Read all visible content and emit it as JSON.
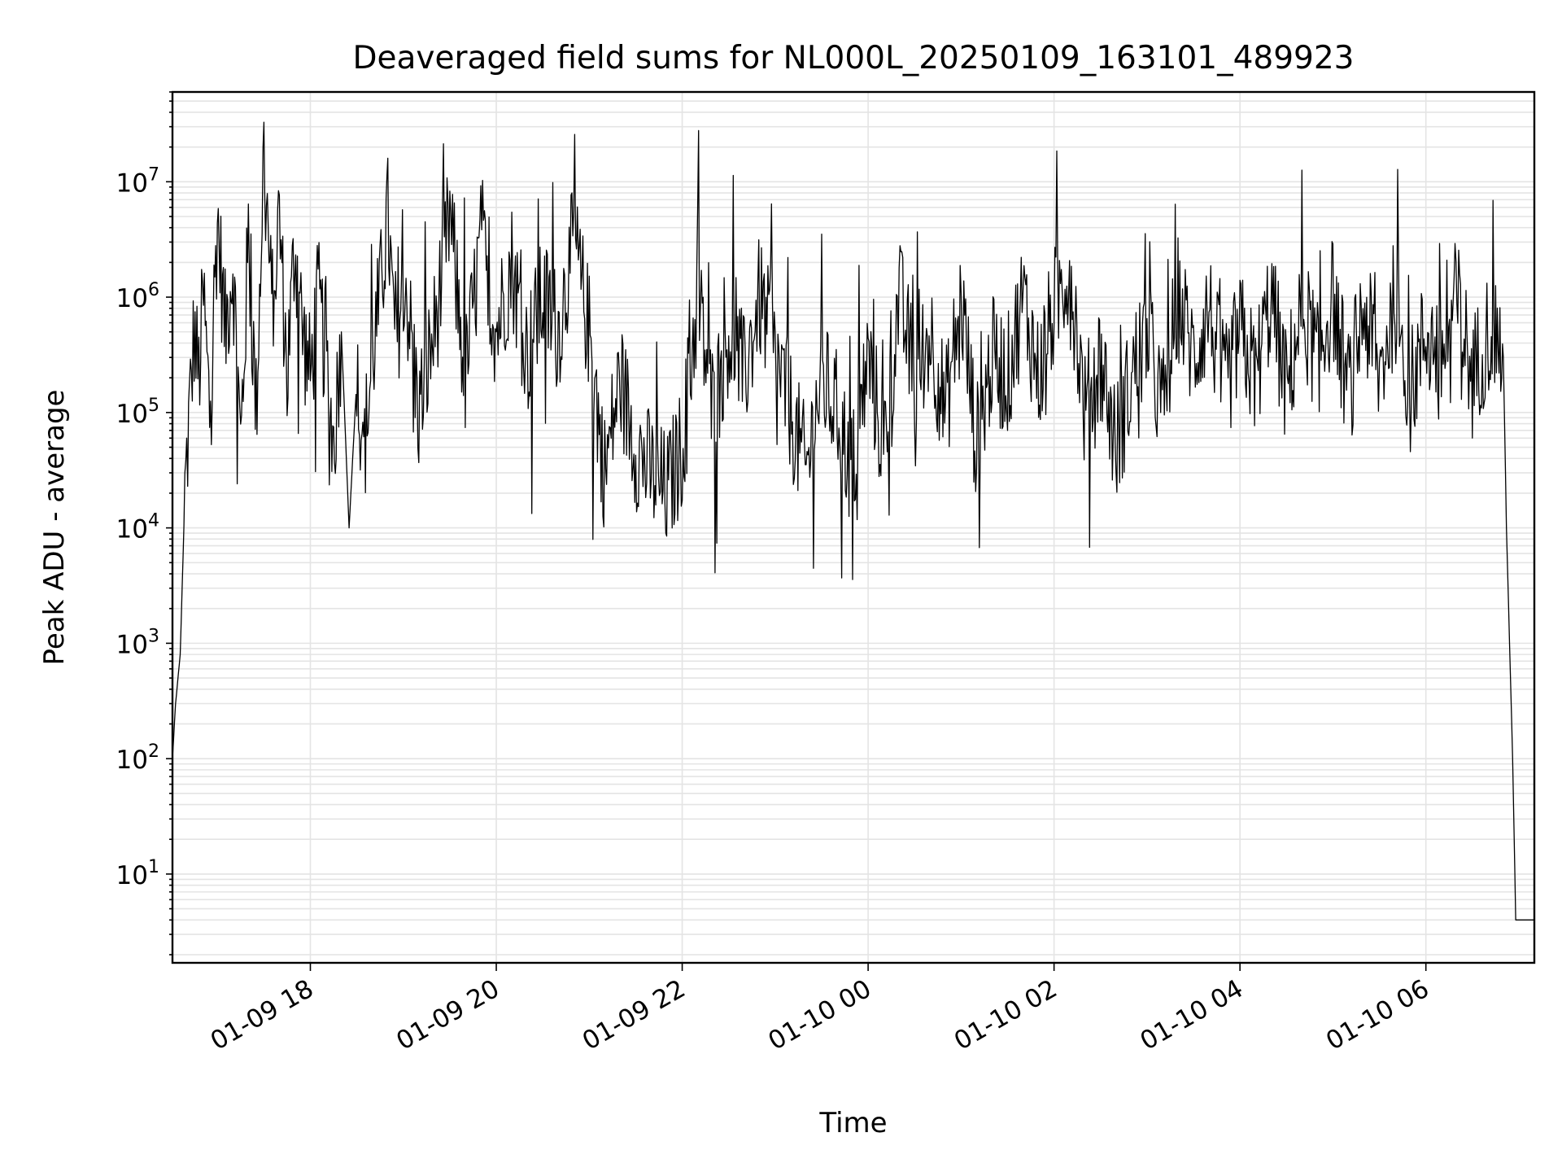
{
  "chart_data": {
    "type": "line",
    "title": "Deaveraged field sums for NL000L_20250109_163101_489923",
    "xlabel": "Time",
    "ylabel": "Peak ADU - average",
    "yscale": "log",
    "grid": true,
    "line_color": "#000000",
    "grid_color": "#e4e4e4",
    "xlim": [
      "2025-01-09 16:31",
      "2025-01-10 07:10"
    ],
    "ylim": [
      1.7,
      60000000
    ],
    "x_ticks": [
      {
        "value": "2025-01-09 18:00",
        "label": "01-09 18"
      },
      {
        "value": "2025-01-09 20:00",
        "label": "01-09 20"
      },
      {
        "value": "2025-01-09 22:00",
        "label": "01-09 22"
      },
      {
        "value": "2025-01-10 00:00",
        "label": "01-10 00"
      },
      {
        "value": "2025-01-10 02:00",
        "label": "01-10 02"
      },
      {
        "value": "2025-01-10 04:00",
        "label": "01-10 04"
      },
      {
        "value": "2025-01-10 06:00",
        "label": "01-10 06"
      }
    ],
    "y_ticks": [
      {
        "value": 10,
        "base": "10",
        "exp": "1"
      },
      {
        "value": 100,
        "base": "10",
        "exp": "2"
      },
      {
        "value": 1000,
        "base": "10",
        "exp": "3"
      },
      {
        "value": 10000,
        "base": "10",
        "exp": "4"
      },
      {
        "value": 100000,
        "base": "10",
        "exp": "5"
      },
      {
        "value": 1000000,
        "base": "10",
        "exp": "6"
      },
      {
        "value": 10000000,
        "base": "10",
        "exp": "7"
      }
    ],
    "series": [
      {
        "x": [
          "2025-01-09 16:31",
          "2025-01-09 16:33",
          "2025-01-09 16:36",
          "2025-01-09 16:39",
          "2025-01-09 16:42",
          "2025-01-09 16:45",
          "2025-01-09 16:48",
          "2025-01-09 16:51",
          "2025-01-09 16:55",
          "2025-01-09 17:00",
          "2025-01-09 17:05",
          "2025-01-09 17:10",
          "2025-01-09 17:15",
          "2025-01-09 17:20",
          "2025-01-09 17:25",
          "2025-01-09 17:30",
          "2025-01-09 17:35",
          "2025-01-09 17:40",
          "2025-01-09 17:45",
          "2025-01-09 17:50",
          "2025-01-09 17:55",
          "2025-01-09 18:00",
          "2025-01-09 18:05",
          "2025-01-09 18:10",
          "2025-01-09 18:15",
          "2025-01-09 18:20",
          "2025-01-09 18:25",
          "2025-01-09 18:30",
          "2025-01-09 18:35",
          "2025-01-09 18:40",
          "2025-01-09 18:45",
          "2025-01-09 18:50",
          "2025-01-09 18:55",
          "2025-01-09 19:00",
          "2025-01-09 19:10",
          "2025-01-09 19:20",
          "2025-01-09 19:30",
          "2025-01-09 19:40",
          "2025-01-09 19:50",
          "2025-01-09 20:00",
          "2025-01-09 20:10",
          "2025-01-09 20:20",
          "2025-01-09 20:30",
          "2025-01-09 20:40",
          "2025-01-09 20:50",
          "2025-01-09 21:00",
          "2025-01-09 21:10",
          "2025-01-09 21:20",
          "2025-01-09 21:30",
          "2025-01-09 21:40",
          "2025-01-09 21:50",
          "2025-01-09 22:00",
          "2025-01-09 22:10",
          "2025-01-09 22:20",
          "2025-01-09 22:30",
          "2025-01-09 22:40",
          "2025-01-09 22:50",
          "2025-01-09 23:00",
          "2025-01-09 23:10",
          "2025-01-09 23:20",
          "2025-01-09 23:30",
          "2025-01-09 23:40",
          "2025-01-09 23:50",
          "2025-01-10 00:00",
          "2025-01-10 00:10",
          "2025-01-10 00:20",
          "2025-01-10 00:30",
          "2025-01-10 00:40",
          "2025-01-10 00:50",
          "2025-01-10 01:00",
          "2025-01-10 01:10",
          "2025-01-10 01:20",
          "2025-01-10 01:30",
          "2025-01-10 01:40",
          "2025-01-10 01:50",
          "2025-01-10 02:00",
          "2025-01-10 02:10",
          "2025-01-10 02:20",
          "2025-01-10 02:30",
          "2025-01-10 02:40",
          "2025-01-10 02:50",
          "2025-01-10 03:00",
          "2025-01-10 03:10",
          "2025-01-10 03:20",
          "2025-01-10 03:30",
          "2025-01-10 03:40",
          "2025-01-10 03:50",
          "2025-01-10 04:00",
          "2025-01-10 04:10",
          "2025-01-10 04:20",
          "2025-01-10 04:30",
          "2025-01-10 04:40",
          "2025-01-10 04:50",
          "2025-01-10 05:00",
          "2025-01-10 05:10",
          "2025-01-10 05:20",
          "2025-01-10 05:30",
          "2025-01-10 05:40",
          "2025-01-10 05:50",
          "2025-01-10 06:00",
          "2025-01-10 06:10",
          "2025-01-10 06:20",
          "2025-01-10 06:30",
          "2025-01-10 06:40",
          "2025-01-10 06:45",
          "2025-01-10 06:50",
          "2025-01-10 06:52",
          "2025-01-10 06:54",
          "2025-01-10 06:56",
          "2025-01-10 06:58",
          "2025-01-10 07:00",
          "2025-01-10 07:05",
          "2025-01-10 07:10"
        ],
        "y": [
          100,
          300,
          800,
          20000,
          100000,
          500000,
          200000,
          1000000,
          100000,
          5000000,
          500000,
          2000000,
          50000,
          3000000,
          100000,
          20000000,
          800000,
          5000000,
          200000,
          3000000,
          500000,
          200000,
          1000000,
          300000,
          50000,
          500000,
          10000,
          200000,
          50000,
          300000,
          1000000,
          5000000,
          300000,
          2000000,
          100000,
          500000,
          5000000,
          200000,
          3000000,
          500000,
          2000000,
          300000,
          1000000,
          500000,
          3000000,
          500000,
          30000,
          200000,
          50000,
          30000,
          20000,
          50000,
          1000000,
          100000,
          500000,
          200000,
          1000000,
          300000,
          100000,
          30000,
          200000,
          100000,
          30000,
          300000,
          50000,
          1000000,
          200000,
          500000,
          100000,
          1000000,
          50000,
          300000,
          200000,
          1000000,
          200000,
          800000,
          2000000,
          100000,
          300000,
          50000,
          200000,
          500000,
          100000,
          1000000,
          300000,
          800000,
          150000,
          500000,
          200000,
          1000000,
          150000,
          800000,
          300000,
          1000000,
          150000,
          800000,
          200000,
          1000000,
          150000,
          500000,
          300000,
          1000000,
          200000,
          500000,
          500000,
          300000,
          10000,
          1000,
          100,
          4,
          4,
          4,
          4
        ]
      }
    ]
  }
}
